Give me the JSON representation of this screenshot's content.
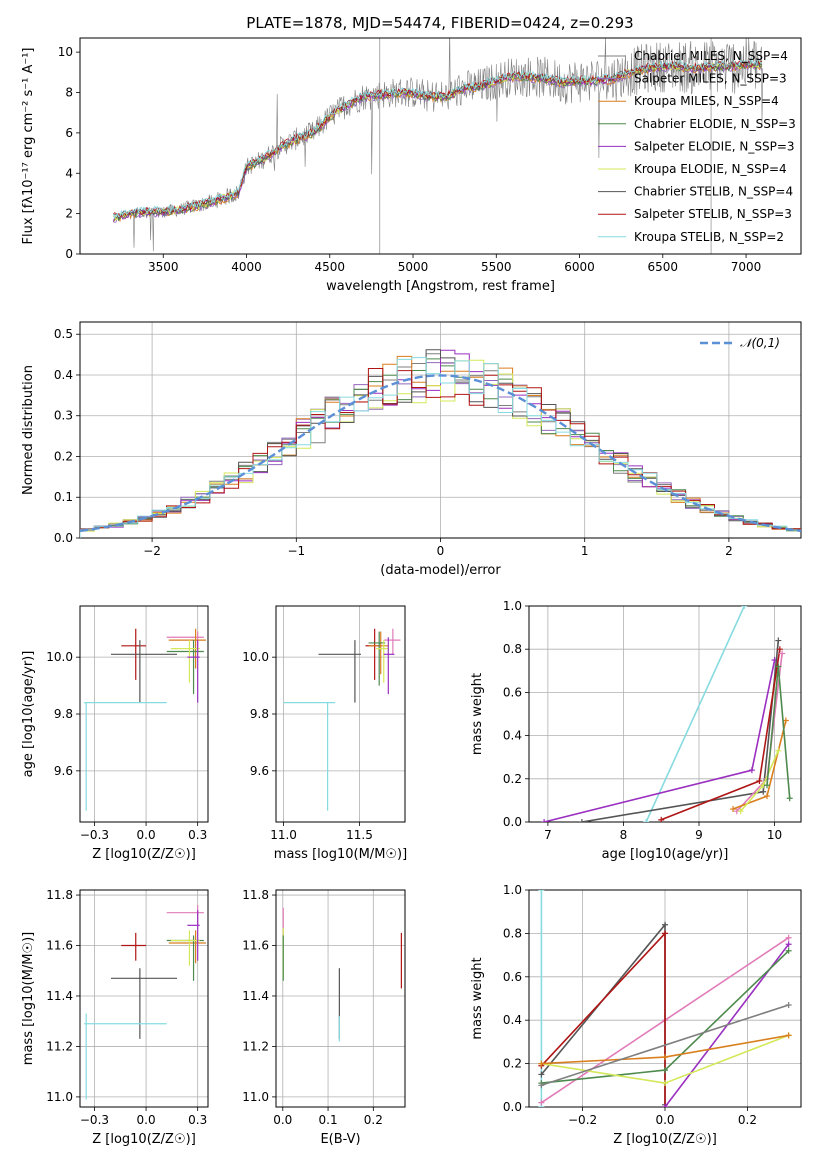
{
  "figure_title": "PLATE=1878, MJD=54474, FIBERID=0424, z=0.293",
  "colors": {
    "chabrier_miles": "#7f7f7f",
    "salpeter_miles": "#9467bd",
    "kroupa_miles": "#d97f1e",
    "chabrier_elodie": "#4e8a4e",
    "salpeter_elodie": "#9a2fc0",
    "kroupa_elodie": "#d4e85a",
    "chabrier_stelib": "#555555",
    "salpeter_stelib": "#b01515",
    "kroupa_stelib": "#86dbe0",
    "pink": "#e07bb8",
    "normal_curve": "#5b8fd6",
    "grid": "#b0b0b0"
  },
  "chart_data": [
    {
      "id": "spectrum",
      "type": "line",
      "xlabel": "wavelength [Angstrom, rest frame]",
      "ylabel": "Flux [fλ10⁻¹⁷ erg cm⁻² s⁻¹ A⁻¹]",
      "xlim": [
        3000,
        7330
      ],
      "ylim": [
        0,
        10.7
      ],
      "xticks": [
        3500,
        4000,
        4500,
        5000,
        5500,
        6000,
        6500,
        7000
      ],
      "yticks": [
        0,
        2,
        4,
        6,
        8,
        10
      ],
      "legend_position": "top-right",
      "legend": [
        {
          "label": "Chabrier MILES, N_SSP=4",
          "color_key": "chabrier_miles"
        },
        {
          "label": "Salpeter MILES, N_SSP=3",
          "color_key": "salpeter_miles"
        },
        {
          "label": "Kroupa MILES, N_SSP=4",
          "color_key": "kroupa_miles"
        },
        {
          "label": "Chabrier ELODIE, N_SSP=3",
          "color_key": "chabrier_elodie"
        },
        {
          "label": "Salpeter ELODIE, N_SSP=3",
          "color_key": "salpeter_elodie"
        },
        {
          "label": "Kroupa ELODIE, N_SSP=4",
          "color_key": "kroupa_elodie"
        },
        {
          "label": "Chabrier STELIB, N_SSP=4",
          "color_key": "chabrier_stelib"
        },
        {
          "label": "Salpeter STELIB, N_SSP=3",
          "color_key": "salpeter_stelib"
        },
        {
          "label": "Kroupa STELIB, N_SSP=2",
          "color_key": "kroupa_stelib"
        }
      ],
      "continuum": {
        "x": [
          3200,
          3300,
          3400,
          3500,
          3600,
          3700,
          3800,
          3900,
          3950,
          4000,
          4100,
          4200,
          4300,
          4400,
          4500,
          4600,
          4700,
          4800,
          4900,
          5000,
          5100,
          5200,
          5300,
          5400,
          5500,
          5600,
          5700,
          5800,
          5900,
          6000,
          6100,
          6200,
          6300,
          6400,
          6500,
          6600,
          6700,
          6800,
          6900,
          7000,
          7100
        ],
        "y": [
          1.8,
          2.0,
          2.1,
          2.1,
          2.2,
          2.4,
          2.6,
          2.9,
          3.0,
          4.3,
          4.7,
          5.3,
          5.7,
          6.0,
          6.8,
          7.4,
          7.8,
          7.9,
          8.0,
          8.0,
          7.8,
          7.8,
          8.2,
          8.3,
          8.6,
          8.8,
          8.8,
          8.7,
          8.5,
          8.6,
          8.6,
          8.7,
          9.0,
          9.2,
          9.3,
          9.3,
          9.2,
          9.3,
          9.3,
          9.4,
          9.4
        ]
      },
      "data_noise": "grey observed spectrum, noise growing from ~0.2 at 3200 A to ~1.5 at 7100 A"
    },
    {
      "id": "residual-histogram",
      "type": "bar",
      "xlabel": "(data-model)/error",
      "ylabel": "Normed distribution",
      "xlim": [
        -2.5,
        2.5
      ],
      "ylim": [
        0,
        0.53
      ],
      "xticks": [
        -2,
        -1,
        0,
        1,
        2
      ],
      "yticks": [
        0,
        0.1,
        0.2,
        0.3,
        0.4,
        0.5
      ],
      "bin_width": 0.1,
      "legend_position": "top-right",
      "legend": [
        {
          "label": "𝒩(0,1)",
          "color_key": "normal_curve"
        }
      ],
      "series_colors": [
        "chabrier_miles",
        "salpeter_miles",
        "kroupa_miles",
        "chabrier_elodie",
        "salpeter_elodie",
        "kroupa_elodie",
        "chabrier_stelib",
        "salpeter_stelib",
        "kroupa_stelib"
      ]
    },
    {
      "id": "age-vs-metallicity",
      "type": "scatter",
      "xlabel": "Z [log10(Z/Z☉)]",
      "ylabel": "age  [log10(age/yr)]",
      "xlim": [
        -0.32,
        0.3
      ],
      "ylim": [
        9.42,
        10.18
      ],
      "xticks": [
        -0.25,
        0.0,
        0.25
      ],
      "yticks": [
        9.6,
        9.8,
        10.0
      ],
      "points": [
        {
          "color_key": "salpeter_stelib",
          "x": -0.05,
          "y": 10.04,
          "xerr": [
            0.07,
            0.05
          ],
          "yerr": [
            0.12,
            0.06
          ]
        },
        {
          "color_key": "chabrier_stelib",
          "x": -0.03,
          "y": 10.01,
          "xerr": [
            0.14,
            0.18
          ],
          "yerr": [
            0.17,
            0.05
          ]
        },
        {
          "color_key": "kroupa_stelib",
          "x": -0.29,
          "y": 9.84,
          "xerr": [
            0.01,
            0.39
          ],
          "yerr": [
            0.38,
            0.0
          ]
        },
        {
          "color_key": "pink",
          "x": 0.25,
          "y": 10.07,
          "xerr": [
            0.15,
            0.03
          ],
          "yerr": [
            0.04,
            0.02
          ]
        },
        {
          "color_key": "kroupa_miles",
          "x": 0.24,
          "y": 10.06,
          "xerr": [
            0.13,
            0.05
          ],
          "yerr": [
            0.1,
            0.04
          ]
        },
        {
          "color_key": "chabrier_elodie",
          "x": 0.23,
          "y": 10.02,
          "xerr": [
            0.13,
            0.05
          ],
          "yerr": [
            0.15,
            0.04
          ]
        },
        {
          "color_key": "kroupa_elodie",
          "x": 0.21,
          "y": 10.03,
          "xerr": [
            0.09,
            0.05
          ],
          "yerr": [
            0.12,
            0.03
          ]
        },
        {
          "color_key": "salpeter_elodie",
          "x": 0.25,
          "y": 10.0,
          "xerr": [
            0.05,
            0.01
          ],
          "yerr": [
            0.16,
            0.06
          ]
        }
      ]
    },
    {
      "id": "age-vs-mass",
      "type": "scatter",
      "xlabel": "mass [log10(M/M☉)]",
      "ylabel": "",
      "xlim": [
        10.95,
        11.8
      ],
      "ylim": [
        9.42,
        10.18
      ],
      "xticks": [
        11.0,
        11.5
      ],
      "yticks": [
        9.6,
        9.8,
        10.0
      ],
      "points": [
        {
          "color_key": "salpeter_stelib",
          "x": 11.6,
          "y": 10.04,
          "xerr": [
            0.06,
            0.04
          ],
          "yerr": [
            0.12,
            0.06
          ]
        },
        {
          "color_key": "chabrier_stelib",
          "x": 11.47,
          "y": 10.01,
          "xerr": [
            0.24,
            0.04
          ],
          "yerr": [
            0.17,
            0.05
          ]
        },
        {
          "color_key": "kroupa_stelib",
          "x": 11.29,
          "y": 9.84,
          "xerr": [
            0.29,
            0.05
          ],
          "yerr": [
            0.38,
            0.0
          ]
        },
        {
          "color_key": "pink",
          "x": 11.72,
          "y": 10.06,
          "xerr": [
            0.06,
            0.05
          ],
          "yerr": [
            0.05,
            0.04
          ]
        },
        {
          "color_key": "kroupa_miles",
          "x": 11.64,
          "y": 10.04,
          "xerr": [
            0.08,
            0.05
          ],
          "yerr": [
            0.1,
            0.05
          ]
        },
        {
          "color_key": "chabrier_elodie",
          "x": 11.63,
          "y": 10.05,
          "xerr": [
            0.07,
            0.04
          ],
          "yerr": [
            0.15,
            0.04
          ]
        },
        {
          "color_key": "kroupa_elodie",
          "x": 11.66,
          "y": 10.03,
          "xerr": [
            0.05,
            0.03
          ],
          "yerr": [
            0.12,
            0.03
          ]
        },
        {
          "color_key": "salpeter_elodie",
          "x": 11.69,
          "y": 10.01,
          "xerr": [
            0.03,
            0.04
          ],
          "yerr": [
            0.14,
            0.06
          ]
        }
      ]
    },
    {
      "id": "weight-vs-age",
      "type": "line",
      "xlabel": "age  [log10(age/yr)]",
      "ylabel": "mass weight",
      "xlim": [
        6.75,
        10.35
      ],
      "ylim": [
        0,
        1.0
      ],
      "xticks": [
        7,
        8,
        9,
        10
      ],
      "yticks": [
        0.0,
        0.2,
        0.4,
        0.6,
        0.8,
        1.0
      ],
      "series": [
        {
          "color_key": "kroupa_stelib",
          "x": [
            8.3,
            9.6
          ],
          "y": [
            0.0,
            1.0
          ]
        },
        {
          "color_key": "salpeter_elodie",
          "x": [
            6.95,
            9.7,
            10.0
          ],
          "y": [
            0.0,
            0.24,
            0.75
          ]
        },
        {
          "color_key": "chabrier_stelib",
          "x": [
            7.45,
            9.85,
            10.05
          ],
          "y": [
            0.0,
            0.14,
            0.84
          ]
        },
        {
          "color_key": "salpeter_stelib",
          "x": [
            8.5,
            9.8,
            10.07
          ],
          "y": [
            0.01,
            0.19,
            0.8
          ]
        },
        {
          "color_key": "pink",
          "x": [
            9.5,
            9.9,
            10.1
          ],
          "y": [
            0.05,
            0.2,
            0.78
          ]
        },
        {
          "color_key": "kroupa_miles",
          "x": [
            9.45,
            9.9,
            10.15
          ],
          "y": [
            0.06,
            0.12,
            0.47
          ]
        },
        {
          "color_key": "kroupa_elodie",
          "x": [
            9.55,
            9.85,
            10.05
          ],
          "y": [
            0.05,
            0.17,
            0.33
          ]
        },
        {
          "color_key": "chabrier_elodie",
          "x": [
            9.9,
            10.05,
            10.2
          ],
          "y": [
            0.17,
            0.72,
            0.11
          ]
        }
      ]
    },
    {
      "id": "mass-vs-metallicity",
      "type": "scatter",
      "xlabel": "Z [log10(Z/Z☉)]",
      "ylabel": "mass [log10(M/M☉)]",
      "xlim": [
        -0.32,
        0.3
      ],
      "ylim": [
        10.96,
        11.82
      ],
      "xticks": [
        -0.25,
        0.0,
        0.25
      ],
      "yticks": [
        11.0,
        11.2,
        11.4,
        11.6,
        11.8
      ],
      "points": [
        {
          "color_key": "salpeter_stelib",
          "x": -0.05,
          "y": 11.6,
          "xerr": [
            0.07,
            0.05
          ],
          "yerr": [
            0.06,
            0.05
          ]
        },
        {
          "color_key": "chabrier_stelib",
          "x": -0.03,
          "y": 11.47,
          "xerr": [
            0.14,
            0.18
          ],
          "yerr": [
            0.24,
            0.04
          ]
        },
        {
          "color_key": "kroupa_stelib",
          "x": -0.29,
          "y": 11.29,
          "xerr": [
            0.01,
            0.39
          ],
          "yerr": [
            0.3,
            0.04
          ]
        },
        {
          "color_key": "pink",
          "x": 0.25,
          "y": 11.73,
          "xerr": [
            0.15,
            0.03
          ],
          "yerr": [
            0.05,
            0.03
          ]
        },
        {
          "color_key": "kroupa_miles",
          "x": 0.24,
          "y": 11.61,
          "xerr": [
            0.13,
            0.05
          ],
          "yerr": [
            0.08,
            0.05
          ]
        },
        {
          "color_key": "chabrier_elodie",
          "x": 0.23,
          "y": 11.62,
          "xerr": [
            0.13,
            0.05
          ],
          "yerr": [
            0.16,
            0.02
          ]
        },
        {
          "color_key": "kroupa_elodie",
          "x": 0.21,
          "y": 11.62,
          "xerr": [
            0.09,
            0.05
          ],
          "yerr": [
            0.1,
            0.04
          ]
        },
        {
          "color_key": "salpeter_elodie",
          "x": 0.25,
          "y": 11.68,
          "xerr": [
            0.05,
            0.01
          ],
          "yerr": [
            0.14,
            0.06
          ]
        }
      ]
    },
    {
      "id": "mass-vs-reddening",
      "type": "scatter",
      "xlabel": "E(B-V)",
      "ylabel": "",
      "xlim": [
        -0.015,
        0.27
      ],
      "ylim": [
        10.96,
        11.82
      ],
      "xticks": [
        0.0,
        0.1,
        0.2
      ],
      "yticks": [
        11.0,
        11.2,
        11.4,
        11.6,
        11.8
      ],
      "points": [
        {
          "color_key": "salpeter_stelib",
          "x": 0.262,
          "y": 11.55,
          "xerr": [
            0,
            0
          ],
          "yerr": [
            0.12,
            0.1
          ]
        },
        {
          "color_key": "chabrier_stelib",
          "x": 0.125,
          "y": 11.38,
          "xerr": [
            0,
            0
          ],
          "yerr": [
            0.15,
            0.13
          ]
        },
        {
          "color_key": "kroupa_stelib",
          "x": 0.125,
          "y": 11.27,
          "xerr": [
            0,
            0
          ],
          "yerr": [
            0.05,
            0.05
          ]
        },
        {
          "color_key": "pink",
          "x": 0.001,
          "y": 11.69,
          "xerr": [
            0,
            0
          ],
          "yerr": [
            0.06,
            0.06
          ]
        },
        {
          "color_key": "kroupa_elodie",
          "x": 0.001,
          "y": 11.57,
          "xerr": [
            0,
            0
          ],
          "yerr": [
            0.1,
            0.1
          ]
        },
        {
          "color_key": "chabrier_elodie",
          "x": 0.001,
          "y": 11.58,
          "xerr": [
            0,
            0
          ],
          "yerr": [
            0.12,
            0.06
          ]
        }
      ]
    },
    {
      "id": "weight-vs-metallicity",
      "type": "line",
      "xlabel": "Z [log10(Z/Z☉)]",
      "ylabel": "mass weight",
      "xlim": [
        -0.33,
        0.33
      ],
      "ylim": [
        0,
        1.0
      ],
      "xticks": [
        -0.2,
        0.0,
        0.2
      ],
      "yticks": [
        0.0,
        0.2,
        0.4,
        0.6,
        0.8,
        1.0
      ],
      "series": [
        {
          "color_key": "kroupa_stelib",
          "x": [
            -0.3,
            -0.3
          ],
          "y": [
            0.0,
            1.0
          ]
        },
        {
          "color_key": "pink",
          "x": [
            -0.3,
            0.0,
            0.3
          ],
          "y": [
            0.02,
            0.4,
            0.78
          ]
        },
        {
          "color_key": "chabrier_stelib",
          "x": [
            -0.3,
            0.0,
            0.0
          ],
          "y": [
            0.15,
            0.84,
            0.01
          ]
        },
        {
          "color_key": "salpeter_stelib",
          "x": [
            -0.3,
            0.0,
            0.0
          ],
          "y": [
            0.19,
            0.8,
            0.0
          ]
        },
        {
          "color_key": "salpeter_elodie",
          "x": [
            0.0,
            0.3
          ],
          "y": [
            0.0,
            0.75
          ]
        },
        {
          "color_key": "chabrier_elodie",
          "x": [
            -0.3,
            0.0,
            0.3
          ],
          "y": [
            0.11,
            0.17,
            0.72
          ]
        },
        {
          "color_key": "kroupa_elodie",
          "x": [
            -0.3,
            0.0,
            0.3
          ],
          "y": [
            0.2,
            0.11,
            0.33
          ]
        },
        {
          "color_key": "kroupa_miles",
          "x": [
            -0.3,
            0.0,
            0.3
          ],
          "y": [
            0.2,
            0.23,
            0.33
          ]
        },
        {
          "color_key": "chabrier_miles",
          "x": [
            -0.3,
            0.3
          ],
          "y": [
            0.1,
            0.47
          ]
        }
      ]
    }
  ]
}
